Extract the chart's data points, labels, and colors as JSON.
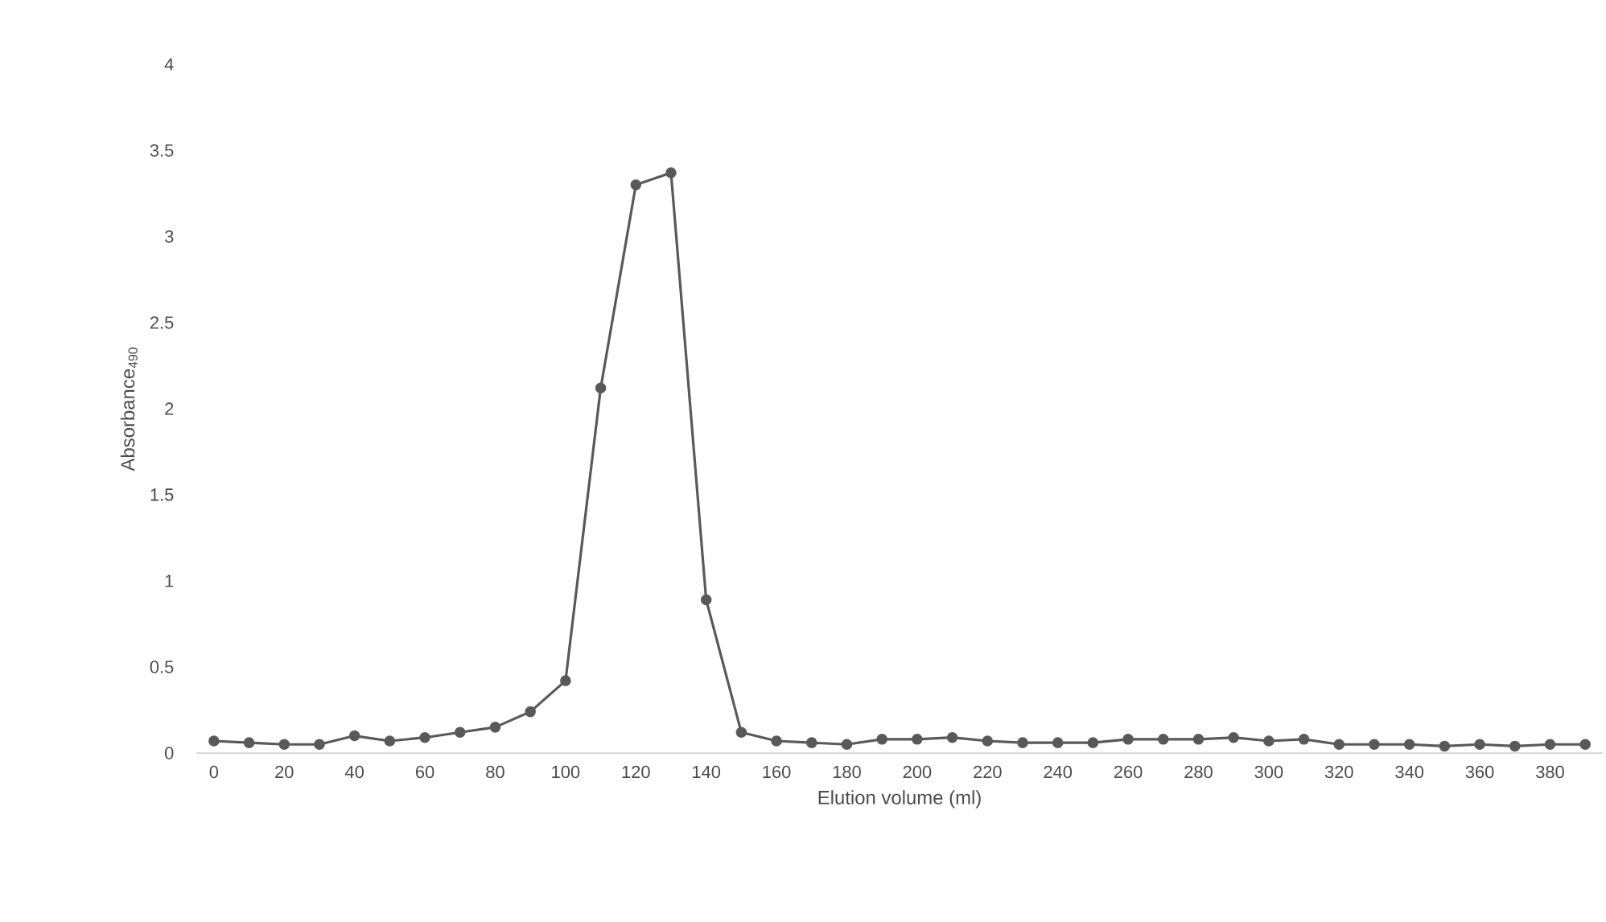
{
  "chart_data": {
    "type": "line",
    "xlabel": "Elution volume (ml)",
    "ylabel": "Absorbance$_{490}$",
    "categories": [
      "0",
      null,
      "20",
      null,
      "40",
      null,
      "60",
      null,
      "80",
      null,
      "100",
      null,
      "120",
      null,
      "140",
      null,
      "160",
      null,
      "180",
      null,
      "200",
      null,
      "220",
      null,
      "240",
      null,
      "260",
      null,
      "280",
      null,
      "300",
      null,
      "320",
      null,
      "340",
      null,
      "360",
      null,
      "380",
      null
    ],
    "series": [
      {
        "color": "#595959",
        "values": [
          0.07,
          0.06,
          0.05,
          0.05,
          0.1,
          0.07,
          0.09,
          0.12,
          0.15,
          0.24,
          0.42,
          2.12,
          3.3,
          3.37,
          0.89,
          0.12,
          0.07,
          0.06,
          0.05,
          0.08,
          0.08,
          0.09,
          0.07,
          0.06,
          0.06,
          0.06,
          0.08,
          0.08,
          0.08,
          0.09,
          0.07,
          0.08,
          0.05,
          0.05,
          0.05,
          0.04,
          0.05,
          0.04,
          0.05,
          0.05
        ]
      }
    ],
    "ylim": [
      0,
      4
    ],
    "yticks": [
      0,
      0.5,
      1,
      1.5,
      2,
      2.5,
      3,
      3.5,
      4
    ],
    "marker": "circle",
    "line_style": "solid",
    "grid": false
  }
}
